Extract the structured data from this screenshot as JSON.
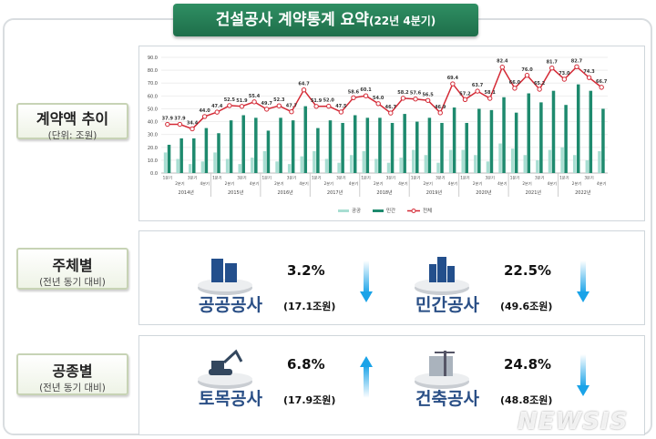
{
  "title": {
    "main": "건설공사 계약통계 요약",
    "sub": "(22년 4분기)"
  },
  "labels": [
    {
      "title": "계약액 추이",
      "sub": "(단위: 조원)"
    },
    {
      "title": "주체별",
      "sub": "(전년 동기 대비)"
    },
    {
      "title": "공종별",
      "sub": "(전년 동기 대비)"
    }
  ],
  "by_entity": [
    {
      "name": "공공공사",
      "pct": "3.2%",
      "amount": "(17.1조원)",
      "direction": "down",
      "icon": "office-buildings-icon"
    },
    {
      "name": "민간공사",
      "pct": "22.5%",
      "amount": "(49.6조원)",
      "direction": "down",
      "icon": "apartment-building-icon"
    }
  ],
  "by_type": [
    {
      "name": "토목공사",
      "pct": "6.8%",
      "amount": "(17.9조원)",
      "direction": "up",
      "icon": "excavator-icon"
    },
    {
      "name": "건축공사",
      "pct": "24.8%",
      "amount": "(48.8조원)",
      "direction": "down",
      "icon": "crane-building-icon"
    }
  ],
  "watermark": "NEWSIS",
  "colors": {
    "public": "#a8ded2",
    "private": "#1e8a6e",
    "total": "#d42a36",
    "banner": "#257d56",
    "arrow": "#1aa3e8",
    "name": "#2a4f86"
  },
  "chart_data": {
    "type": "bar+line",
    "ylim": [
      0,
      90
    ],
    "yticks": [
      "0.0",
      "10.0",
      "20.0",
      "30.0",
      "40.0",
      "50.0",
      "60.0",
      "70.0",
      "80.0",
      "90.0"
    ],
    "quarters": [
      "1분기",
      "2분기",
      "3분기",
      "4분기"
    ],
    "years": [
      "2014년",
      "2015년",
      "2016년",
      "2017년",
      "2018년",
      "2019년",
      "2020년",
      "2021년",
      "2022년"
    ],
    "grid": true,
    "legend": "bottom",
    "series": [
      {
        "name": "공공",
        "type": "bar",
        "values": [
          16,
          11,
          7,
          9,
          16,
          11,
          7,
          12,
          17,
          9,
          7,
          13,
          17,
          11,
          8,
          14,
          17,
          11,
          8,
          12,
          18,
          14,
          8,
          18,
          18,
          14,
          9,
          23,
          19,
          14,
          10,
          18,
          20,
          14,
          10,
          17
        ]
      },
      {
        "name": "민간",
        "type": "bar",
        "values": [
          22,
          27,
          27,
          35,
          31,
          41,
          45,
          43,
          33,
          43,
          41,
          52,
          35,
          41,
          39,
          45,
          43,
          43,
          39,
          46,
          40,
          43,
          39,
          51,
          39,
          50,
          49,
          59,
          47,
          62,
          55,
          64,
          53,
          69,
          64,
          50
        ]
      },
      {
        "name": "전체",
        "type": "line",
        "values": [
          37.9,
          37.9,
          34.4,
          44.0,
          47.4,
          52.5,
          51.9,
          55.4,
          49.7,
          52.3,
          47.7,
          64.7,
          51.9,
          52.0,
          47.5,
          58.6,
          60.1,
          54.0,
          46.7,
          58.2,
          57.6,
          56.5,
          46.9,
          69.4,
          57.2,
          63.7,
          58.1,
          82.4,
          66.0,
          76.0,
          65.2,
          81.7,
          73.0,
          82.7,
          74.3,
          66.7
        ]
      }
    ]
  }
}
